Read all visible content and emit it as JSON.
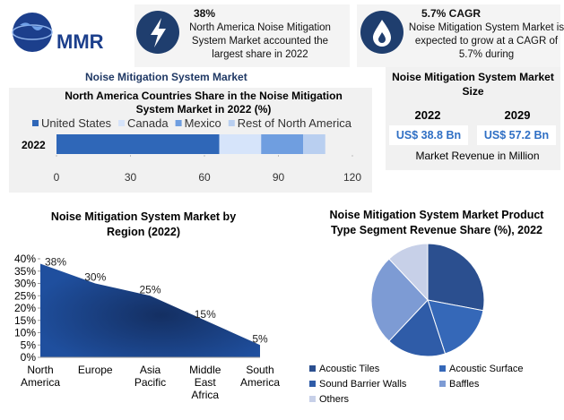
{
  "logo": "MMR",
  "highlights": [
    {
      "value": "38%",
      "text": "North America Noise Mitigation System Market accounted the largest share in 2022"
    },
    {
      "value": "5.7% CAGR",
      "text": "Noise Mitigation System Market is expected to grow at a CAGR of 5.7% during"
    }
  ],
  "header": "Noise Mitigation System Market",
  "size_panel": {
    "title": "Noise Mitigation System Market Size",
    "years": [
      "2022",
      "2029"
    ],
    "values": [
      "US$ 38.8 Bn",
      "US$ 57.2 Bn"
    ],
    "note": "Market Revenue in Million"
  },
  "chart_data": [
    {
      "type": "bar",
      "orientation": "horizontal",
      "stacked": true,
      "title": "North America Countries Share in the Noise Mitigation System Market in 2022 (%)",
      "categories": [
        "2022"
      ],
      "series": [
        {
          "name": "United States",
          "color": "#2f67b8",
          "values": [
            66
          ]
        },
        {
          "name": "Canada",
          "color": "#d6e4fa",
          "values": [
            17
          ]
        },
        {
          "name": "Mexico",
          "color": "#6f9ee0",
          "values": [
            17
          ]
        },
        {
          "name": "Rest of North America",
          "color": "#b9cff0",
          "values": [
            9
          ]
        }
      ],
      "xlim": [
        0,
        120
      ],
      "xticks": [
        0,
        30,
        60,
        90,
        120
      ]
    },
    {
      "type": "area",
      "title": "Noise Mitigation System Market by Region (2022)",
      "categories": [
        "North America",
        "Europe",
        "Asia Pacific",
        "Middle East Africa",
        "South America"
      ],
      "values": [
        38,
        30,
        25,
        15,
        5
      ],
      "value_labels": [
        "38%",
        "30%",
        "25%",
        "15%",
        "5%"
      ],
      "color": "#1f4f9e",
      "ylim": [
        0,
        40
      ],
      "yticks": [
        {
          "value": 0,
          "label": "0%"
        },
        {
          "value": 5,
          "label": "5%"
        },
        {
          "value": 10,
          "label": "10%"
        },
        {
          "value": 15,
          "label": "15%"
        },
        {
          "value": 20,
          "label": "20%"
        },
        {
          "value": 25,
          "label": "25%"
        },
        {
          "value": 30,
          "label": "30%"
        },
        {
          "value": 35,
          "label": "35%"
        },
        {
          "value": 40,
          "label": "40%"
        }
      ]
    },
    {
      "type": "pie",
      "title": "Noise Mitigation System Market Product Type Segment Revenue Share (%), 2022",
      "categories": [
        "Acoustic Tiles",
        "Acoustic Surface",
        "Sound Barrier Walls",
        "Baffles",
        "Others"
      ],
      "values": [
        28,
        17,
        17,
        26,
        12
      ],
      "colors": [
        "#2b4f8f",
        "#3568b8",
        "#2f5ca8",
        "#7d9bd4",
        "#c7d0e8"
      ]
    }
  ]
}
